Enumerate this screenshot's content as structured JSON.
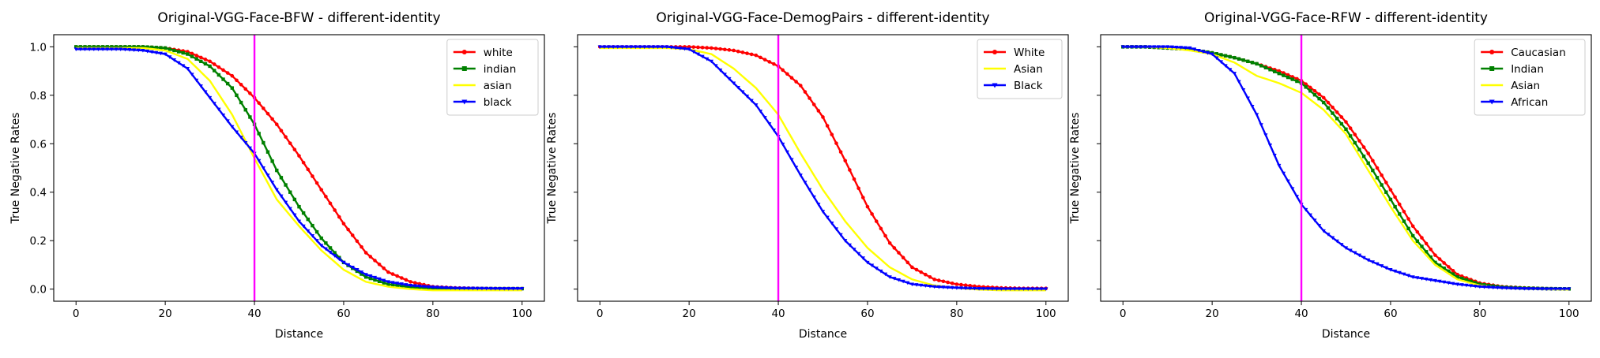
{
  "chart_data": [
    {
      "type": "line",
      "title": "Original-VGG-Face-BFW - different-identity",
      "xlabel": "Distance",
      "ylabel": "True Negative Rates",
      "xlim": [
        -5,
        105
      ],
      "ylim": [
        -0.05,
        1.05
      ],
      "xticks": [
        "0",
        "20",
        "40",
        "60",
        "80",
        "100"
      ],
      "yticks": [
        "0.0",
        "0.2",
        "0.4",
        "0.6",
        "0.8",
        "1.0"
      ],
      "show_yticklabels": true,
      "threshold_x": 40,
      "threshold_color": "#ff00ff",
      "legend_position": "upper right",
      "x": [
        0,
        5,
        10,
        15,
        20,
        25,
        30,
        35,
        40,
        45,
        50,
        55,
        60,
        65,
        70,
        75,
        80,
        85,
        90,
        95,
        100
      ],
      "series": [
        {
          "name": "white",
          "color": "#ff0000",
          "marker": "dot",
          "values": [
            1.0,
            1.0,
            1.0,
            1.0,
            0.995,
            0.98,
            0.94,
            0.88,
            0.79,
            0.68,
            0.55,
            0.41,
            0.27,
            0.15,
            0.07,
            0.03,
            0.01,
            0.005,
            0.003,
            0.002,
            0.002
          ]
        },
        {
          "name": "indian",
          "color": "#008000",
          "marker": "square",
          "values": [
            1.0,
            1.0,
            1.0,
            1.0,
            0.995,
            0.97,
            0.92,
            0.83,
            0.68,
            0.49,
            0.34,
            0.21,
            0.11,
            0.05,
            0.02,
            0.008,
            0.003,
            0.002,
            0.002,
            0.002,
            0.002
          ]
        },
        {
          "name": "asian",
          "color": "#ffff00",
          "marker": "none",
          "values": [
            0.995,
            0.995,
            0.995,
            0.995,
            0.985,
            0.95,
            0.86,
            0.72,
            0.54,
            0.37,
            0.26,
            0.16,
            0.08,
            0.03,
            0.01,
            0.0,
            -0.005,
            -0.005,
            -0.005,
            -0.005,
            -0.005
          ]
        },
        {
          "name": "black",
          "color": "#0000ff",
          "marker": "triangle",
          "values": [
            0.99,
            0.99,
            0.99,
            0.985,
            0.97,
            0.91,
            0.79,
            0.67,
            0.56,
            0.41,
            0.28,
            0.18,
            0.11,
            0.06,
            0.03,
            0.015,
            0.008,
            0.004,
            0.003,
            0.002,
            0.002
          ]
        }
      ]
    },
    {
      "type": "line",
      "title": "Original-VGG-Face-DemogPairs - different-identity",
      "xlabel": "Distance",
      "ylabel": "True Negative Rates",
      "xlim": [
        -5,
        105
      ],
      "ylim": [
        -0.05,
        1.05
      ],
      "xticks": [
        "0",
        "20",
        "40",
        "60",
        "80",
        "100"
      ],
      "yticks": [
        "0.0",
        "0.2",
        "0.4",
        "0.6",
        "0.8",
        "1.0"
      ],
      "show_yticklabels": false,
      "threshold_x": 40,
      "threshold_color": "#ff00ff",
      "legend_position": "upper right",
      "x": [
        0,
        5,
        10,
        15,
        20,
        25,
        30,
        35,
        40,
        45,
        50,
        55,
        60,
        65,
        70,
        75,
        80,
        85,
        90,
        95,
        100
      ],
      "series": [
        {
          "name": "White",
          "color": "#ff0000",
          "marker": "dot",
          "values": [
            1.0,
            1.0,
            1.0,
            1.0,
            1.0,
            0.995,
            0.985,
            0.965,
            0.92,
            0.84,
            0.71,
            0.53,
            0.34,
            0.19,
            0.09,
            0.04,
            0.02,
            0.01,
            0.005,
            0.003,
            0.003
          ]
        },
        {
          "name": "Asian",
          "color": "#ffff00",
          "marker": "none",
          "values": [
            0.995,
            0.995,
            0.995,
            0.995,
            0.99,
            0.97,
            0.91,
            0.83,
            0.72,
            0.56,
            0.41,
            0.28,
            0.17,
            0.09,
            0.04,
            0.015,
            0.005,
            -0.002,
            -0.005,
            -0.005,
            -0.005
          ]
        },
        {
          "name": "Black",
          "color": "#0000ff",
          "marker": "triangle",
          "values": [
            1.0,
            1.0,
            1.0,
            1.0,
            0.99,
            0.94,
            0.85,
            0.76,
            0.63,
            0.47,
            0.32,
            0.2,
            0.11,
            0.05,
            0.02,
            0.01,
            0.005,
            0.002,
            0.001,
            0.001,
            0.001
          ]
        }
      ]
    },
    {
      "type": "line",
      "title": "Original-VGG-Face-RFW - different-identity",
      "xlabel": "Distance",
      "ylabel": "True Negative Rates",
      "xlim": [
        -5,
        105
      ],
      "ylim": [
        -0.05,
        1.05
      ],
      "xticks": [
        "0",
        "20",
        "40",
        "60",
        "80",
        "100"
      ],
      "yticks": [
        "0.0",
        "0.2",
        "0.4",
        "0.6",
        "0.8",
        "1.0"
      ],
      "show_yticklabels": false,
      "threshold_x": 40,
      "threshold_color": "#ff00ff",
      "legend_position": "upper right",
      "x": [
        0,
        5,
        10,
        15,
        20,
        25,
        30,
        35,
        40,
        45,
        50,
        55,
        60,
        65,
        70,
        75,
        80,
        85,
        90,
        95,
        100
      ],
      "series": [
        {
          "name": "Caucasian",
          "color": "#ff0000",
          "marker": "dot",
          "values": [
            1.0,
            1.0,
            0.995,
            0.99,
            0.975,
            0.955,
            0.93,
            0.9,
            0.86,
            0.79,
            0.69,
            0.56,
            0.41,
            0.26,
            0.14,
            0.06,
            0.025,
            0.01,
            0.005,
            0.002,
            0.001
          ]
        },
        {
          "name": "Indian",
          "color": "#008000",
          "marker": "square",
          "values": [
            1.0,
            1.0,
            0.995,
            0.99,
            0.975,
            0.955,
            0.93,
            0.89,
            0.85,
            0.77,
            0.66,
            0.52,
            0.37,
            0.22,
            0.11,
            0.05,
            0.02,
            0.008,
            0.004,
            0.002,
            0.001
          ]
        },
        {
          "name": "Asian",
          "color": "#ffff00",
          "marker": "none",
          "values": [
            1.0,
            1.0,
            0.995,
            0.985,
            0.97,
            0.935,
            0.88,
            0.85,
            0.81,
            0.74,
            0.64,
            0.49,
            0.34,
            0.2,
            0.1,
            0.04,
            0.015,
            0.005,
            0.002,
            0.0,
            -0.002
          ]
        },
        {
          "name": "African",
          "color": "#0000ff",
          "marker": "triangle",
          "values": [
            1.0,
            1.0,
            1.0,
            0.995,
            0.97,
            0.89,
            0.72,
            0.51,
            0.35,
            0.24,
            0.17,
            0.12,
            0.08,
            0.05,
            0.035,
            0.02,
            0.01,
            0.005,
            0.002,
            0.001,
            0.001
          ]
        }
      ]
    }
  ]
}
